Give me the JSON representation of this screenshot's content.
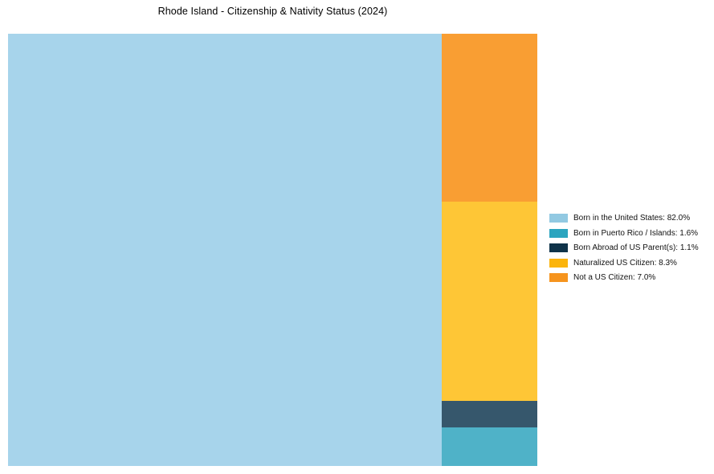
{
  "title": "Rhode Island - Citizenship & Nativity Status (2024)",
  "background_color": "#FFFFFF",
  "title_color": "#000000",
  "legend_text_color": "#111111",
  "chart_data": {
    "type": "treemap",
    "title": "Rhode Island - Citizenship & Nativity Status (2024)",
    "unit": "%",
    "categories": [
      "Born in the United States",
      "Born in Puerto Rico / Islands",
      "Born Abroad of US Parent(s)",
      "Naturalized US Citizen",
      "Not a US Citizen"
    ],
    "values": [
      82.0,
      1.6,
      1.1,
      8.3,
      7.0
    ],
    "tile_colors": [
      "#A7D4EB",
      "#4FB2C8",
      "#36576C",
      "#FEC636",
      "#F99E33"
    ],
    "legend_colors": [
      "#92C9E2",
      "#2CA5BF",
      "#0F3349",
      "#FBB40C",
      "#F6941E"
    ],
    "legend_position": "right",
    "layout": {
      "main_tile_index": 0,
      "right_column_order": [
        4,
        3,
        2,
        1
      ]
    }
  },
  "legend": {
    "items": [
      {
        "label": "Born in the United States: 82.0%",
        "color": "#92C9E2"
      },
      {
        "label": "Born in Puerto Rico / Islands: 1.6%",
        "color": "#2CA5BF"
      },
      {
        "label": "Born Abroad of US Parent(s): 1.1%",
        "color": "#0F3349"
      },
      {
        "label": "Naturalized US Citizen: 8.3%",
        "color": "#FBB40C"
      },
      {
        "label": "Not a US Citizen: 7.0%",
        "color": "#F6941E"
      }
    ]
  }
}
